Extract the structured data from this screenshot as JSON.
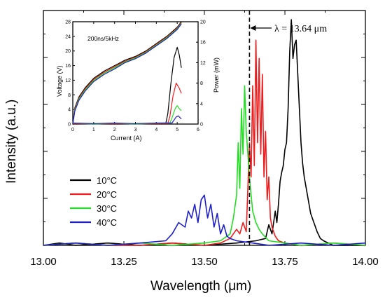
{
  "chart_data": [
    {
      "type": "line",
      "xlabel": "Wavelength (μm)",
      "ylabel": "Intensity (a.u.)",
      "xlim": [
        13.0,
        14.0
      ],
      "ylim": [
        0,
        1.03
      ],
      "x_ticks": [
        "13.00",
        "13.25",
        "13.50",
        "13.75",
        "14.00"
      ],
      "y_tick_labels": false,
      "grid": false,
      "legend_position": "bottom-left",
      "annotation": {
        "text": "λ = 13.64 μm",
        "x": 13.64
      },
      "series": [
        {
          "name": "10°C",
          "color": "#000000",
          "x": [
            13.0,
            13.05,
            13.1,
            13.2,
            13.3,
            13.4,
            13.5,
            13.6,
            13.66,
            13.69,
            13.7,
            13.71,
            13.72,
            13.725,
            13.73,
            13.735,
            13.74,
            13.745,
            13.75,
            13.755,
            13.76,
            13.765,
            13.77,
            13.775,
            13.78,
            13.785,
            13.79,
            13.795,
            13.8,
            13.805,
            13.81,
            13.82,
            13.83,
            13.84,
            13.85,
            13.86,
            13.87,
            13.9,
            14.0
          ],
          "y": [
            0.0,
            0.01,
            0.0,
            0.01,
            0.0,
            0.01,
            0.0,
            0.01,
            0.02,
            0.03,
            0.09,
            0.05,
            0.15,
            0.1,
            0.18,
            0.28,
            0.32,
            0.35,
            0.42,
            0.45,
            0.6,
            0.85,
            0.99,
            0.82,
            0.88,
            0.9,
            0.75,
            0.6,
            0.45,
            0.36,
            0.3,
            0.22,
            0.14,
            0.1,
            0.06,
            0.03,
            0.02,
            0.0,
            0.0
          ]
        },
        {
          "name": "20°C",
          "color": "#ee1c1c",
          "x": [
            13.0,
            13.1,
            13.2,
            13.3,
            13.4,
            13.5,
            13.55,
            13.58,
            13.6,
            13.61,
            13.62,
            13.63,
            13.635,
            13.64,
            13.645,
            13.65,
            13.655,
            13.66,
            13.665,
            13.67,
            13.675,
            13.68,
            13.685,
            13.69,
            13.695,
            13.7,
            13.705,
            13.71,
            13.72,
            13.73,
            13.75,
            13.8,
            13.9,
            14.0
          ],
          "y": [
            0.0,
            0.01,
            0.0,
            0.0,
            0.01,
            0.0,
            0.01,
            0.03,
            0.07,
            0.05,
            0.1,
            0.06,
            0.25,
            0.45,
            0.3,
            0.7,
            0.35,
            0.9,
            0.45,
            0.82,
            0.4,
            0.75,
            0.3,
            0.5,
            0.2,
            0.3,
            0.12,
            0.08,
            0.04,
            0.02,
            0.01,
            0.0,
            0.01,
            0.0
          ]
        },
        {
          "name": "30°C",
          "color": "#22dd22",
          "x": [
            13.0,
            13.1,
            13.2,
            13.3,
            13.4,
            13.5,
            13.55,
            13.58,
            13.59,
            13.6,
            13.605,
            13.61,
            13.615,
            13.62,
            13.625,
            13.63,
            13.635,
            13.64,
            13.645,
            13.65,
            13.66,
            13.67,
            13.68,
            13.7,
            13.75,
            13.8,
            13.9,
            14.0
          ],
          "y": [
            0.0,
            0.01,
            0.0,
            0.01,
            0.0,
            0.01,
            0.02,
            0.05,
            0.12,
            0.22,
            0.45,
            0.25,
            0.6,
            0.4,
            0.7,
            0.5,
            0.4,
            0.3,
            0.22,
            0.15,
            0.1,
            0.07,
            0.05,
            0.02,
            0.01,
            0.0,
            0.01,
            0.0
          ]
        },
        {
          "name": "40°C",
          "color": "#1e1ec8",
          "x": [
            13.0,
            13.1,
            13.2,
            13.3,
            13.38,
            13.4,
            13.42,
            13.44,
            13.45,
            13.46,
            13.47,
            13.48,
            13.49,
            13.5,
            13.51,
            13.52,
            13.53,
            13.54,
            13.55,
            13.56,
            13.57,
            13.58,
            13.6,
            13.65,
            13.7,
            13.8,
            13.9,
            14.0
          ],
          "y": [
            0.0,
            0.01,
            0.0,
            0.01,
            0.02,
            0.05,
            0.1,
            0.08,
            0.15,
            0.12,
            0.18,
            0.1,
            0.2,
            0.22,
            0.12,
            0.18,
            0.08,
            0.14,
            0.05,
            0.09,
            0.04,
            0.03,
            0.02,
            0.01,
            0.0,
            0.01,
            0.0,
            0.01
          ]
        }
      ]
    },
    {
      "type": "line",
      "title": "200ns/5kHz",
      "xlabel": "Current (A)",
      "ylabel": "Voltage (V)",
      "y2label": "Power (mW)",
      "xlim": [
        0,
        6
      ],
      "ylim": [
        0,
        28
      ],
      "y2lim": [
        0,
        20
      ],
      "x_ticks": [
        "0",
        "1",
        "2",
        "3",
        "4",
        "5",
        "6"
      ],
      "y_ticks": [
        "0",
        "4",
        "8",
        "12",
        "16",
        "20",
        "24",
        "28"
      ],
      "y2_ticks": [
        "0",
        "4",
        "8",
        "12",
        "16",
        "20"
      ],
      "series": [
        {
          "name": "Voltage 10°C",
          "axis": "left",
          "color": "#000000",
          "x": [
            0,
            0.1,
            0.3,
            0.6,
            1.0,
            1.5,
            2.0,
            2.5,
            3.0,
            3.5,
            4.0,
            4.5,
            5.0,
            5.2
          ],
          "y": [
            0,
            4.5,
            7.5,
            10.0,
            12.5,
            14.5,
            16.0,
            17.5,
            18.5,
            20.0,
            22.0,
            24.0,
            26.5,
            28.0
          ]
        },
        {
          "name": "Voltage 20°C",
          "axis": "left",
          "color": "#ee1c1c",
          "x": [
            0,
            0.1,
            0.3,
            0.6,
            1.0,
            1.5,
            2.0,
            2.5,
            3.0,
            3.5,
            4.0,
            4.5,
            5.0,
            5.2
          ],
          "y": [
            0,
            4.2,
            7.2,
            9.7,
            12.2,
            14.2,
            15.7,
            17.2,
            18.3,
            19.8,
            21.8,
            23.8,
            26.3,
            27.8
          ]
        },
        {
          "name": "Voltage 30°C",
          "axis": "left",
          "color": "#22dd22",
          "x": [
            0,
            0.1,
            0.3,
            0.6,
            1.0,
            1.5,
            2.0,
            2.5,
            3.0,
            3.5,
            4.0,
            4.5,
            5.0,
            5.2
          ],
          "y": [
            0,
            3.9,
            6.9,
            9.4,
            11.9,
            13.9,
            15.4,
            17.0,
            18.1,
            19.6,
            21.6,
            23.6,
            26.1,
            27.6
          ]
        },
        {
          "name": "Voltage 40°C",
          "axis": "left",
          "color": "#1e1ec8",
          "x": [
            0,
            0.1,
            0.3,
            0.6,
            1.0,
            1.5,
            2.0,
            2.5,
            3.0,
            3.5,
            4.0,
            4.5,
            5.0,
            5.2
          ],
          "y": [
            0,
            3.6,
            6.6,
            9.1,
            11.6,
            13.6,
            15.1,
            16.8,
            17.9,
            19.4,
            21.4,
            23.4,
            25.9,
            27.4
          ]
        },
        {
          "name": "Power 10°C",
          "axis": "right",
          "color": "#000000",
          "x": [
            0,
            1,
            2,
            3,
            4,
            4.45,
            4.55,
            4.7,
            4.85,
            5.0,
            5.1,
            5.2
          ],
          "y": [
            0.1,
            0.0,
            0.1,
            0.0,
            0.1,
            0.1,
            2.0,
            8.0,
            13.0,
            15.0,
            13.5,
            11.0
          ]
        },
        {
          "name": "Power 20°C",
          "axis": "right",
          "color": "#ee1c1c",
          "x": [
            0,
            1,
            2,
            3,
            4,
            4.55,
            4.65,
            4.8,
            4.95,
            5.1,
            5.2
          ],
          "y": [
            0.1,
            0.0,
            0.1,
            0.0,
            0.1,
            0.1,
            1.5,
            5.5,
            8.0,
            7.0,
            6.0
          ]
        },
        {
          "name": "Power 30°C",
          "axis": "right",
          "color": "#22dd22",
          "x": [
            0,
            1,
            2,
            3,
            4,
            4.65,
            4.75,
            4.9,
            5.0,
            5.1,
            5.2
          ],
          "y": [
            0.2,
            0.0,
            0.2,
            0.0,
            0.2,
            0.2,
            1.2,
            3.0,
            3.6,
            3.0,
            2.6
          ]
        },
        {
          "name": "Power 40°C",
          "axis": "right",
          "color": "#1e1ec8",
          "x": [
            0,
            1,
            2,
            3,
            4,
            4.75,
            4.85,
            4.95,
            5.05,
            5.2
          ],
          "y": [
            0.2,
            0.1,
            0.2,
            0.1,
            0.2,
            0.2,
            0.8,
            1.4,
            1.6,
            1.0
          ]
        }
      ]
    }
  ]
}
